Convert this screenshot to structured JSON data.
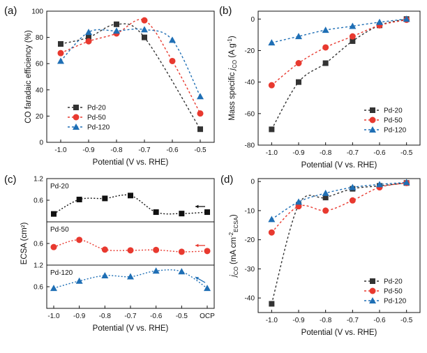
{
  "chart_data": [
    {
      "panel": "(a)",
      "type": "line",
      "xlabel": "Potential (V vs. RHE)",
      "ylabel": "CO faradaic efficiency (%)",
      "xlim": [
        -1.05,
        -0.45
      ],
      "ylim": [
        0,
        100
      ],
      "xticks": [
        "-1.0",
        "-0.9",
        "-0.8",
        "-0.7",
        "-0.6",
        "-0.5"
      ],
      "yticks": [
        "0",
        "20",
        "40",
        "60",
        "80",
        "100"
      ],
      "x": [
        -1.0,
        -0.9,
        -0.8,
        -0.7,
        -0.6,
        -0.5
      ],
      "series": [
        {
          "name": "Pd-20",
          "color": "#333333",
          "marker": "square",
          "values": [
            75,
            80,
            90,
            80,
            null,
            10
          ]
        },
        {
          "name": "Pd-50",
          "color": "#e8392f",
          "marker": "circle",
          "values": [
            68,
            77,
            83,
            93,
            62,
            22
          ]
        },
        {
          "name": "Pd-120",
          "color": "#1f6fb5",
          "marker": "triangle",
          "values": [
            62,
            84,
            85,
            86,
            78,
            35
          ]
        }
      ],
      "legend_position": "bottom-left"
    },
    {
      "panel": "(b)",
      "type": "line",
      "xlabel": "Potential (V vs. RHE)",
      "ylabel": "Mass specific j_CO (A g⁻¹)",
      "ylabel_parts": {
        "main": "Mass specific ",
        "j": "j",
        "sub": "CO",
        "unit": " (A g",
        "sup": "-1",
        "close": ")"
      },
      "xlim": [
        -1.05,
        -0.45
      ],
      "ylim": [
        -80,
        5
      ],
      "xticks": [
        "-1.0",
        "-0.9",
        "-0.8",
        "-0.7",
        "-0.6",
        "-0.5"
      ],
      "yticks": [
        "-80",
        "-60",
        "-40",
        "-20",
        "0"
      ],
      "x": [
        -1.0,
        -0.9,
        -0.8,
        -0.7,
        -0.6,
        -0.5
      ],
      "series": [
        {
          "name": "Pd-20",
          "color": "#333333",
          "marker": "square",
          "values": [
            -70,
            -40,
            -28,
            -14,
            -4,
            0
          ]
        },
        {
          "name": "Pd-50",
          "color": "#e8392f",
          "marker": "circle",
          "values": [
            -42,
            -28,
            -18,
            -11,
            -4,
            -0.5
          ]
        },
        {
          "name": "Pd-120",
          "color": "#1f6fb5",
          "marker": "triangle",
          "values": [
            -15,
            -11,
            -7,
            -4.5,
            -2,
            0
          ]
        }
      ],
      "legend_position": "bottom-right"
    },
    {
      "panel": "(c)",
      "type": "line",
      "xlabel": "Potential (V vs. RHE)",
      "ylabel": "ECSA (cm²)",
      "xticks": [
        "-1.0",
        "-0.9",
        "-0.8",
        "-0.7",
        "-0.6",
        "-0.5",
        "OCP"
      ],
      "subpanels": [
        {
          "name": "Pd-20",
          "color": "#111111",
          "marker": "square",
          "ylim": [
            0,
            1.2
          ],
          "yticks": [
            "0.6",
            "1.2"
          ],
          "values": [
            0.22,
            0.62,
            0.65,
            0.73,
            0.27,
            0.23,
            0.27
          ]
        },
        {
          "name": "Pd-50",
          "color": "#e8392f",
          "marker": "circle",
          "ylim": [
            0,
            1.2
          ],
          "yticks": [
            "0.6"
          ],
          "values": [
            0.5,
            0.7,
            0.43,
            0.41,
            0.42,
            0.37,
            0.39
          ]
        },
        {
          "name": "Pd-120",
          "color": "#1f6fb5",
          "marker": "triangle",
          "ylim": [
            0,
            1.2
          ],
          "yticks": [
            "0.6",
            "1.2"
          ],
          "values": [
            0.56,
            0.76,
            0.91,
            0.88,
            1.04,
            1.02,
            0.56
          ]
        }
      ]
    },
    {
      "panel": "(d)",
      "type": "line",
      "xlabel": "Potential (V vs. RHE)",
      "ylabel": "j_CO (mA cm⁻² ECSA)",
      "ylabel_parts": {
        "j": "j",
        "sub": "CO",
        "unit": " (mA cm",
        "sup": "-2",
        "sub2": "ECSA",
        "close": ")"
      },
      "xlim": [
        -1.05,
        -0.45
      ],
      "ylim": [
        -45,
        1
      ],
      "xticks": [
        "-1.0",
        "-0.9",
        "-0.8",
        "-0.7",
        "-0.6",
        "-0.5"
      ],
      "yticks": [
        "-40",
        "-30",
        "-20",
        "-10",
        "0"
      ],
      "x": [
        -1.0,
        -0.9,
        -0.8,
        -0.7,
        -0.6,
        -0.5
      ],
      "series": [
        {
          "name": "Pd-20",
          "color": "#333333",
          "marker": "square",
          "values": [
            -42,
            -8,
            -5.5,
            -2.5,
            -1.5,
            -0.5
          ]
        },
        {
          "name": "Pd-50",
          "color": "#e8392f",
          "marker": "circle",
          "values": [
            -17.5,
            -8.5,
            -10,
            -6.5,
            -2,
            -0.5
          ]
        },
        {
          "name": "Pd-120",
          "color": "#1f6fb5",
          "marker": "triangle",
          "values": [
            -13,
            -7,
            -4,
            -2,
            -1,
            -0.3
          ]
        }
      ],
      "legend_position": "bottom-right"
    }
  ]
}
